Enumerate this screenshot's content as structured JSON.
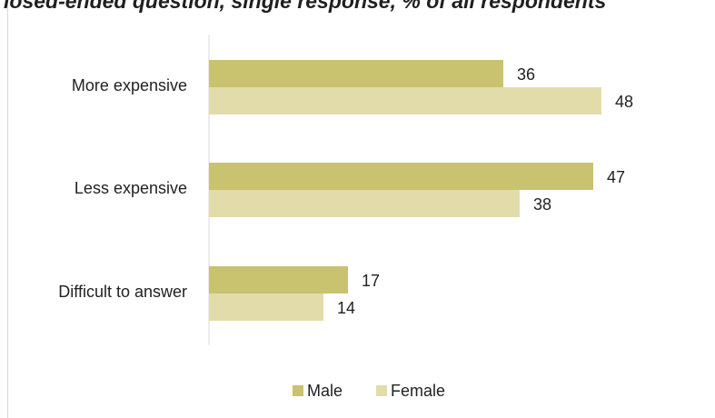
{
  "chart_data": {
    "type": "bar",
    "orientation": "horizontal",
    "title": "losed-ended question, single response, % of all respondents",
    "categories": [
      "More expensive",
      "Less expensive",
      "Difficult to answer"
    ],
    "series": [
      {
        "name": "Male",
        "values": [
          36,
          47,
          17
        ],
        "color": "#c9c26e"
      },
      {
        "name": "Female",
        "values": [
          48,
          38,
          14
        ],
        "color": "#e2dcaa"
      }
    ],
    "xlim": [
      0,
      50
    ],
    "grid": false,
    "legend": "bottom-center",
    "data_labels": true
  }
}
